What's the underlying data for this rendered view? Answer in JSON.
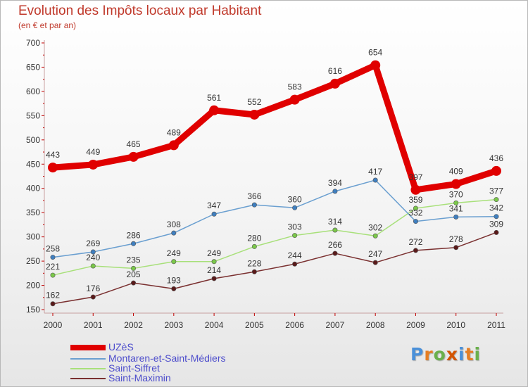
{
  "header": {
    "title": "Evolution des Impôts locaux par Habitant",
    "subtitle": "(en € et par an)"
  },
  "logo": {
    "text": "Proxiti"
  },
  "chart_data": {
    "type": "line",
    "title": "Evolution des Impôts locaux par Habitant",
    "subtitle": "(en € et par an)",
    "xlabel": "",
    "ylabel": "",
    "x": [
      "2000",
      "2001",
      "2002",
      "2003",
      "2004",
      "2005",
      "2006",
      "2007",
      "2008",
      "2009",
      "2010",
      "2011"
    ],
    "ylim": [
      150,
      700
    ],
    "yticks": [
      150,
      200,
      250,
      300,
      350,
      400,
      450,
      500,
      550,
      600,
      650,
      700
    ],
    "grid": false,
    "legend_position": "bottom-left",
    "series": [
      {
        "name": "UZèS",
        "color": "#e00000",
        "marker": "#e00000",
        "values": [
          443,
          449,
          465,
          489,
          561,
          552,
          583,
          616,
          654,
          397,
          409,
          436
        ]
      },
      {
        "name": "Montaren-et-Saint-Médiers",
        "color": "#6a9fd0",
        "marker": "#3f7fc0",
        "values": [
          258,
          269,
          286,
          308,
          347,
          366,
          360,
          394,
          417,
          332,
          341,
          342
        ]
      },
      {
        "name": "Saint-Siffret",
        "color": "#a8e07a",
        "marker": "#7bc84a",
        "values": [
          221,
          240,
          235,
          249,
          249,
          280,
          303,
          314,
          302,
          359,
          370,
          377
        ]
      },
      {
        "name": "Saint-Maximin",
        "color": "#7a3030",
        "marker": "#5a1a1a",
        "values": [
          162,
          176,
          205,
          193,
          214,
          228,
          244,
          266,
          247,
          272,
          278,
          309
        ]
      }
    ]
  }
}
